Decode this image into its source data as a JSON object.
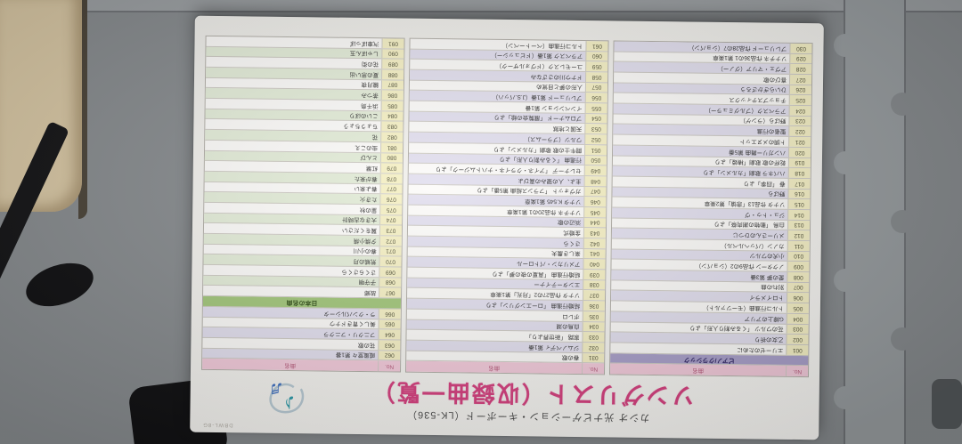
{
  "scene": {
    "description": "photo of printed song list card upside-down on gray foam puzzle mats",
    "colors": {
      "mat_gray": "#878b8e",
      "mat_beige": "#d8c7a4",
      "card_white": "#f7f6f3",
      "title_accent": "#d6407f",
      "classic_section_purple": "#a9a0ca",
      "japan_section_green": "#a3c77c",
      "table_header_pink": "#f3cbdb",
      "number_cell_yellow": "#f6f1c6",
      "stripe_lavender": "#e3e0ef",
      "stripe_green": "#e4edd9"
    }
  },
  "card": {
    "subtitle": "カシオ 光ナビゲーション・キーボード（LK-536）",
    "title": "ソングリスト（収録曲一覧）",
    "corner_code": "DBWL-8G",
    "ornament": "music-notes-ornament",
    "table": {
      "col_headers": {
        "no": "No.",
        "name": "曲名"
      },
      "sections": [
        "ピアノ/クラシック",
        "日本の名曲"
      ],
      "columns": [
        [
          {
            "section": "ピアノ/クラシック",
            "green": false
          },
          {
            "no": "001",
            "title": "エリーゼのために"
          },
          {
            "no": "002",
            "title": "乙女の祈り"
          },
          {
            "no": "003",
            "title": "花のワルツ 「くるみ割り人形」より"
          },
          {
            "no": "004",
            "title": "G線上のアリア"
          },
          {
            "no": "005",
            "title": "トルコ行進曲（モーツァルト）"
          },
          {
            "no": "006",
            "title": "トロイメライ"
          },
          {
            "no": "007",
            "title": "別れの曲"
          },
          {
            "no": "008",
            "title": "愛の夢 第3番"
          },
          {
            "no": "009",
            "title": "ノクターン 作品9の2（ショパン）"
          },
          {
            "no": "010",
            "title": "小犬のワルツ"
          },
          {
            "no": "011",
            "title": "カノン（パッヘルベル）"
          },
          {
            "no": "012",
            "title": "メリーさんのひつじ"
          },
          {
            "no": "013",
            "title": "白鳥 「動物の謝肉祭」より"
          },
          {
            "no": "014",
            "title": "ジュ・トゥ・ヴ"
          },
          {
            "no": "015",
            "title": "ソナタ 作品13「悲愴」第2楽章"
          },
          {
            "no": "016",
            "title": "野ばら"
          },
          {
            "no": "017",
            "title": "春 「四季」より"
          },
          {
            "no": "018",
            "title": "ハバネラ 歌劇「カルメン」より"
          },
          {
            "no": "019",
            "title": "乾杯の歌 歌劇「椿姫」より"
          },
          {
            "no": "020",
            "title": "ハンガリー舞曲 第5番"
          },
          {
            "no": "021",
            "title": "ト調のメヌエット"
          },
          {
            "no": "022",
            "title": "聖者の行進"
          },
          {
            "no": "023",
            "title": "野ばら（ランゲ）"
          },
          {
            "no": "024",
            "title": "アラベスク（ブルグミュラー）"
          },
          {
            "no": "025",
            "title": "チョップスティックス"
          },
          {
            "no": "026",
            "title": "ひいらぎかざろう"
          },
          {
            "no": "027",
            "title": "喜びの歌"
          },
          {
            "no": "028",
            "title": "アヴェ・マリア（グノー）"
          },
          {
            "no": "029",
            "title": "ソナチネ 作品36の1 第1楽章"
          },
          {
            "no": "030",
            "title": "プレリュード 作品28の7（ショパン）"
          }
        ],
        [
          {
            "no": "031",
            "title": "春の歌"
          },
          {
            "no": "032",
            "title": "ジムノペディ 第1番"
          },
          {
            "no": "033",
            "title": "家路 「新世界より」"
          },
          {
            "no": "034",
            "title": "白鳥の湖"
          },
          {
            "no": "035",
            "title": "ボレロ"
          },
          {
            "no": "036",
            "title": "結婚行進曲 「ローエングリン」より"
          },
          {
            "no": "037",
            "title": "ソナタ 作品27の2「月光」第1楽章"
          },
          {
            "no": "038",
            "title": "エンターテイナー"
          },
          {
            "no": "039",
            "title": "結婚行進曲 「真夏の夜の夢」より"
          },
          {
            "no": "040",
            "title": "アメリカン・パトロール"
          },
          {
            "no": "041",
            "title": "楽しき農夫"
          },
          {
            "no": "042",
            "title": "さくら"
          },
          {
            "no": "043",
            "title": "金婚式"
          },
          {
            "no": "044",
            "title": "浜辺の歌"
          },
          {
            "no": "045",
            "title": "ソナチネ 作品20の1 第1楽章"
          },
          {
            "no": "046",
            "title": "ソナタ K.545 第1楽章"
          },
          {
            "no": "047",
            "title": "ガヴォット 「フランス組曲 第5番」より"
          },
          {
            "no": "048",
            "title": "主よ、人の望みの喜びよ"
          },
          {
            "no": "049",
            "title": "セレナーデ 「アイネ・クライネ・ナハトムジーク」より"
          },
          {
            "no": "050",
            "title": "行進曲 「くるみ割り人形」より"
          },
          {
            "no": "051",
            "title": "闘牛士の歌 歌劇「カルメン」より"
          },
          {
            "no": "052",
            "title": "ワルツ（ブラームス）"
          },
          {
            "no": "053",
            "title": "天国と地獄"
          },
          {
            "no": "054",
            "title": "プロムナード 「展覧会の絵」より"
          },
          {
            "no": "055",
            "title": "インベンション 第1番"
          },
          {
            "no": "056",
            "title": "プレリュード 第1番（J.S.バッハ）"
          },
          {
            "no": "057",
            "title": "人形の夢と目覚め"
          },
          {
            "no": "058",
            "title": "ドナウ川のさざなみ"
          },
          {
            "no": "059",
            "title": "ユーモレスク（ドヴォルザーク）"
          },
          {
            "no": "060",
            "title": "アラベスク 第1番（ドビュッシー）"
          },
          {
            "no": "061",
            "title": "トルコ行進曲（ベートーベン）"
          }
        ],
        [
          {
            "no": "062",
            "title": "威風堂々 第1番"
          },
          {
            "no": "063",
            "title": "花の歌"
          },
          {
            "no": "064",
            "title": "フニクリ・フニクラ"
          },
          {
            "no": "065",
            "title": "美しく青きドナウ"
          },
          {
            "no": "066",
            "title": "ラ・クンパルシータ"
          },
          {
            "section": "日本の名曲",
            "green": true
          },
          {
            "no": "067",
            "title": "故郷"
          },
          {
            "no": "068",
            "title": "子守唄"
          },
          {
            "no": "069",
            "title": "さくらさくら"
          },
          {
            "no": "070",
            "title": "荒城の月"
          },
          {
            "no": "071",
            "title": "春の小川"
          },
          {
            "no": "072",
            "title": "夕焼小焼"
          },
          {
            "no": "073",
            "title": "翼をください"
          },
          {
            "no": "074",
            "title": "大きな古時計"
          },
          {
            "no": "075",
            "title": "里の秋"
          },
          {
            "no": "076",
            "title": "たき火"
          },
          {
            "no": "077",
            "title": "春よ来い"
          },
          {
            "no": "078",
            "title": "春が来た"
          },
          {
            "no": "079",
            "title": "紅葉"
          },
          {
            "no": "080",
            "title": "とんび"
          },
          {
            "no": "081",
            "title": "虫のこえ"
          },
          {
            "no": "082",
            "title": "花"
          },
          {
            "no": "083",
            "title": "ちょうちょう"
          },
          {
            "no": "084",
            "title": "こいのぼり"
          },
          {
            "no": "085",
            "title": "浜千鳥"
          },
          {
            "no": "086",
            "title": "茶つみ"
          },
          {
            "no": "087",
            "title": "朧月夜"
          },
          {
            "no": "088",
            "title": "夏の思い出"
          },
          {
            "no": "089",
            "title": "花の街"
          },
          {
            "no": "090",
            "title": "しゃぼん玉"
          },
          {
            "no": "091",
            "title": "汽車ぽっぽ"
          }
        ]
      ]
    }
  }
}
